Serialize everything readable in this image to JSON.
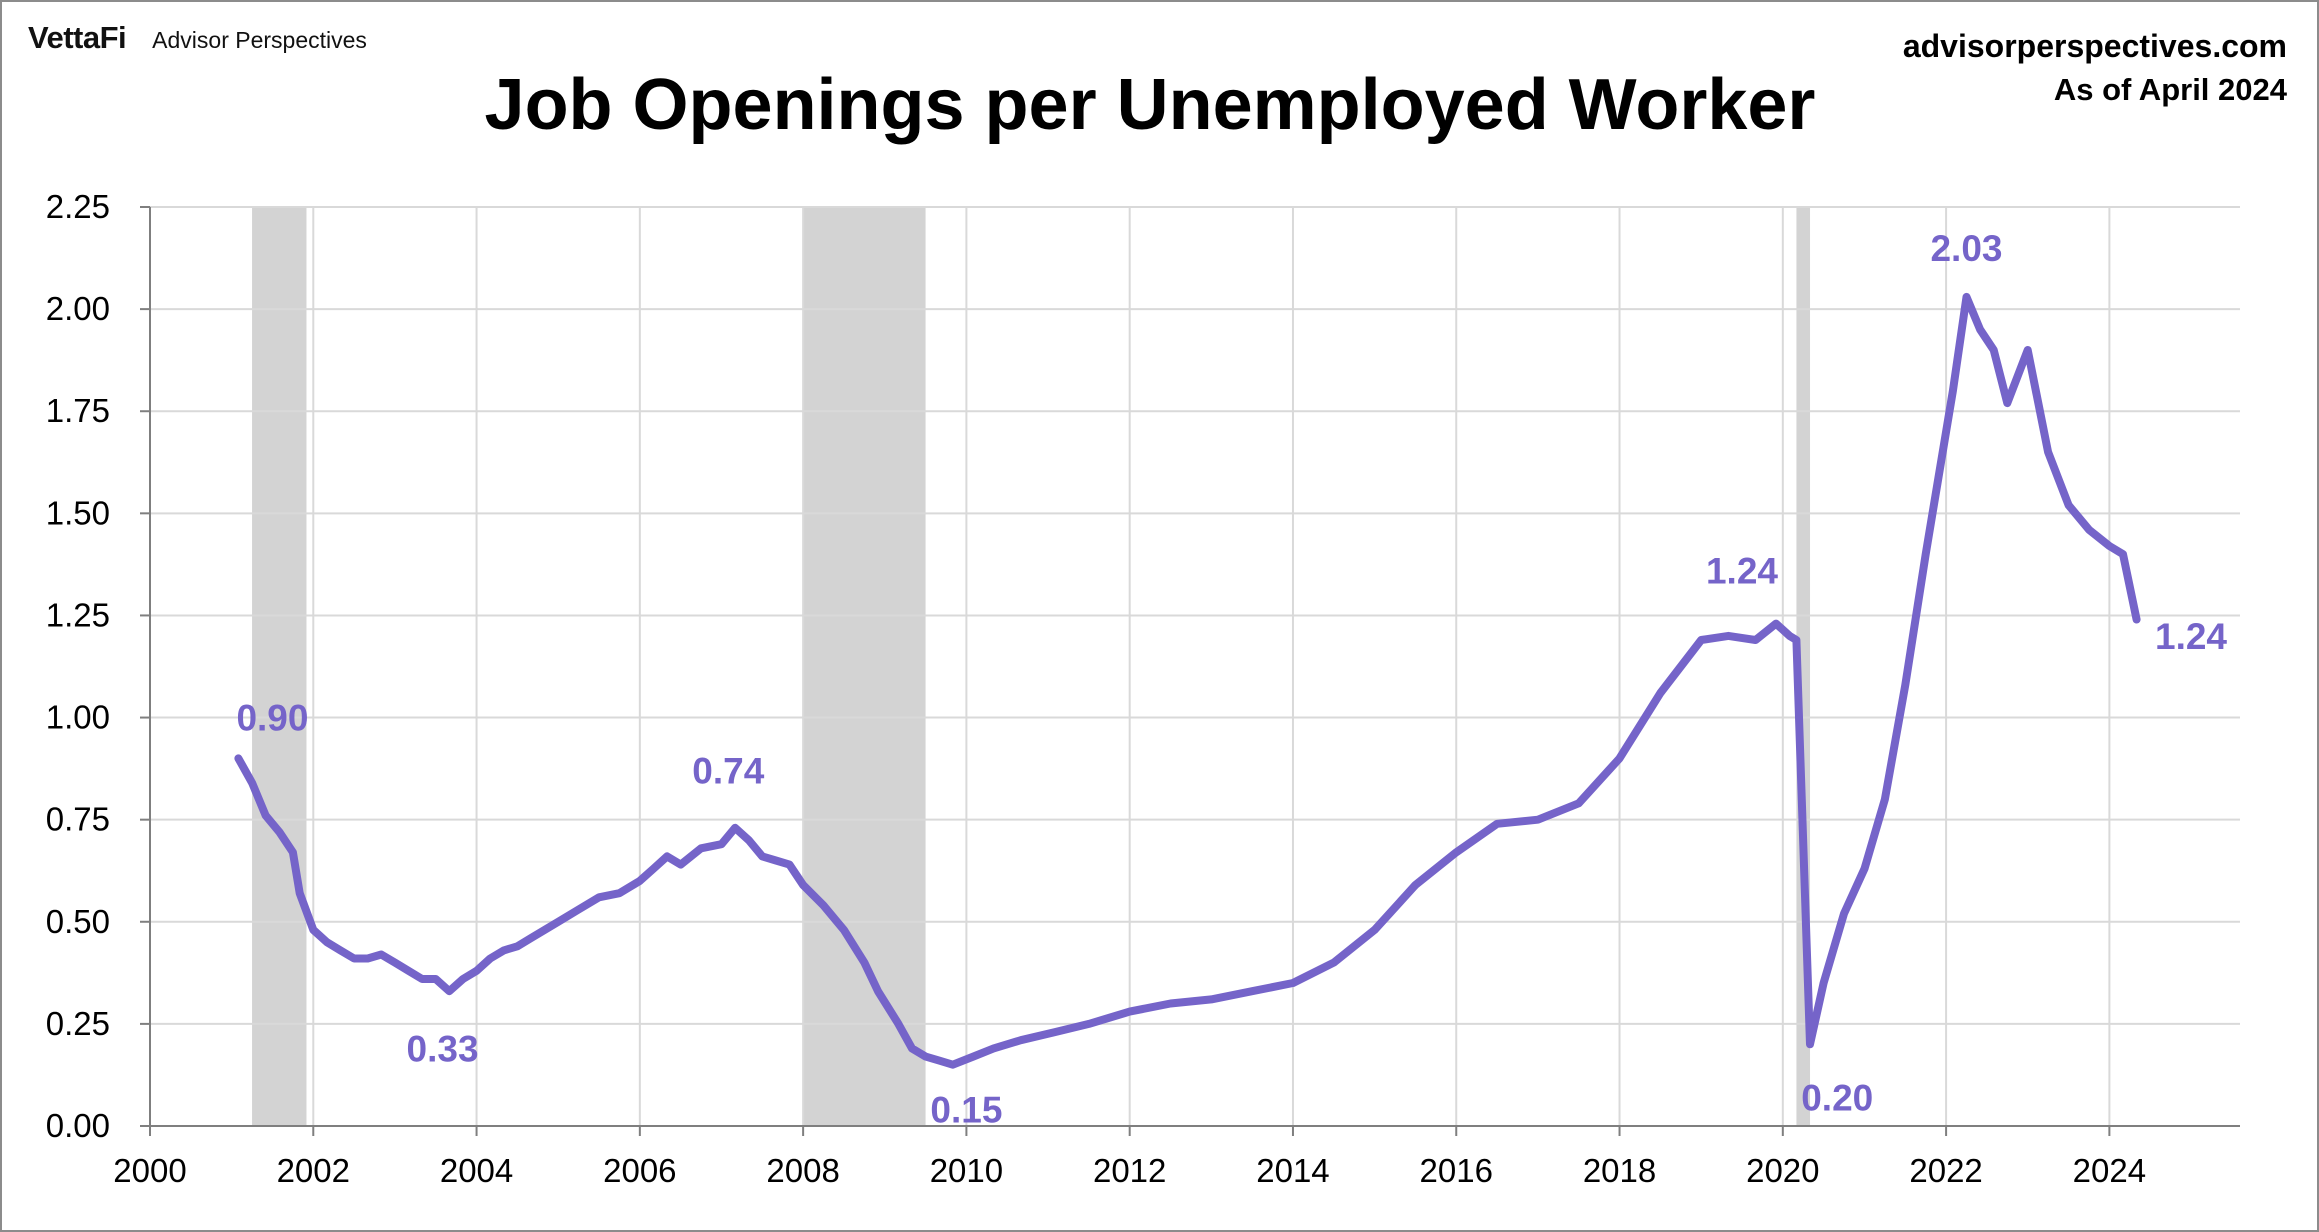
{
  "brand": {
    "logo": "VettaFi",
    "subtitle": "Advisor Perspectives"
  },
  "source": {
    "url": "advisorperspectives.com",
    "as_of": "As of April 2024"
  },
  "colors": {
    "line": "#7564C9",
    "recession": "#d3d3d3",
    "grid": "#d9d9d9",
    "axis": "#7f7f7f"
  },
  "chart_data": {
    "type": "line",
    "title": "Job Openings per Unemployed Worker",
    "xlabel": "",
    "ylabel": "",
    "xlim": [
      2000,
      2025.6
    ],
    "ylim": [
      0,
      2.25
    ],
    "grid": true,
    "x_ticks": [
      "2000",
      "2002",
      "2004",
      "2006",
      "2008",
      "2010",
      "2012",
      "2014",
      "2016",
      "2018",
      "2020",
      "2022",
      "2024"
    ],
    "y_ticks": [
      "0.00",
      "0.25",
      "0.50",
      "0.75",
      "1.00",
      "1.25",
      "1.50",
      "1.75",
      "2.00",
      "2.25"
    ],
    "recessions": [
      {
        "start": "2001-03",
        "end": "2001-11"
      },
      {
        "start": "2007-12",
        "end": "2009-06"
      },
      {
        "start": "2020-02",
        "end": "2020-04"
      }
    ],
    "series": [
      {
        "values": [
          [
            "2001-01",
            0.9
          ],
          [
            "2001-03",
            0.84
          ],
          [
            "2001-05",
            0.76
          ],
          [
            "2001-07",
            0.72
          ],
          [
            "2001-09",
            0.67
          ],
          [
            "2001-10",
            0.57
          ],
          [
            "2001-12",
            0.48
          ],
          [
            "2002-02",
            0.45
          ],
          [
            "2002-04",
            0.43
          ],
          [
            "2002-06",
            0.41
          ],
          [
            "2002-08",
            0.41
          ],
          [
            "2002-10",
            0.42
          ],
          [
            "2002-12",
            0.4
          ],
          [
            "2003-02",
            0.38
          ],
          [
            "2003-04",
            0.36
          ],
          [
            "2003-06",
            0.36
          ],
          [
            "2003-08",
            0.33
          ],
          [
            "2003-10",
            0.36
          ],
          [
            "2003-12",
            0.38
          ],
          [
            "2004-02",
            0.41
          ],
          [
            "2004-04",
            0.43
          ],
          [
            "2004-06",
            0.44
          ],
          [
            "2004-08",
            0.46
          ],
          [
            "2004-10",
            0.48
          ],
          [
            "2004-12",
            0.5
          ],
          [
            "2005-03",
            0.53
          ],
          [
            "2005-06",
            0.56
          ],
          [
            "2005-09",
            0.57
          ],
          [
            "2005-12",
            0.6
          ],
          [
            "2006-02",
            0.63
          ],
          [
            "2006-04",
            0.66
          ],
          [
            "2006-06",
            0.64
          ],
          [
            "2006-09",
            0.68
          ],
          [
            "2006-12",
            0.69
          ],
          [
            "2007-02",
            0.73
          ],
          [
            "2007-04",
            0.7
          ],
          [
            "2007-06",
            0.66
          ],
          [
            "2007-08",
            0.65
          ],
          [
            "2007-10",
            0.64
          ],
          [
            "2007-12",
            0.59
          ],
          [
            "2008-03",
            0.54
          ],
          [
            "2008-06",
            0.48
          ],
          [
            "2008-09",
            0.4
          ],
          [
            "2008-11",
            0.33
          ],
          [
            "2009-02",
            0.25
          ],
          [
            "2009-04",
            0.19
          ],
          [
            "2009-06",
            0.17
          ],
          [
            "2009-08",
            0.16
          ],
          [
            "2009-10",
            0.15
          ],
          [
            "2010-01",
            0.17
          ],
          [
            "2010-04",
            0.19
          ],
          [
            "2010-08",
            0.21
          ],
          [
            "2011-01",
            0.23
          ],
          [
            "2011-06",
            0.25
          ],
          [
            "2011-12",
            0.28
          ],
          [
            "2012-06",
            0.3
          ],
          [
            "2012-12",
            0.31
          ],
          [
            "2013-06",
            0.33
          ],
          [
            "2013-12",
            0.35
          ],
          [
            "2014-06",
            0.4
          ],
          [
            "2014-12",
            0.48
          ],
          [
            "2015-06",
            0.59
          ],
          [
            "2015-12",
            0.67
          ],
          [
            "2016-06",
            0.74
          ],
          [
            "2016-12",
            0.75
          ],
          [
            "2017-06",
            0.79
          ],
          [
            "2017-12",
            0.9
          ],
          [
            "2018-06",
            1.06
          ],
          [
            "2018-12",
            1.19
          ],
          [
            "2019-04",
            1.2
          ],
          [
            "2019-08",
            1.19
          ],
          [
            "2019-11",
            1.23
          ],
          [
            "2020-01",
            1.2
          ],
          [
            "2020-02",
            1.19
          ],
          [
            "2020-04",
            0.2
          ],
          [
            "2020-06",
            0.35
          ],
          [
            "2020-09",
            0.52
          ],
          [
            "2020-12",
            0.63
          ],
          [
            "2021-03",
            0.8
          ],
          [
            "2021-06",
            1.08
          ],
          [
            "2021-09",
            1.4
          ],
          [
            "2021-12",
            1.7
          ],
          [
            "2022-01",
            1.8
          ],
          [
            "2022-03",
            2.03
          ],
          [
            "2022-05",
            1.95
          ],
          [
            "2022-07",
            1.9
          ],
          [
            "2022-09",
            1.77
          ],
          [
            "2022-12",
            1.9
          ],
          [
            "2023-03",
            1.65
          ],
          [
            "2023-06",
            1.52
          ],
          [
            "2023-09",
            1.46
          ],
          [
            "2023-12",
            1.42
          ],
          [
            "2024-02",
            1.4
          ],
          [
            "2024-04",
            1.24
          ]
        ]
      }
    ],
    "annotations": [
      {
        "text": "0.90",
        "x": "2001-06",
        "y": 1.0
      },
      {
        "text": "0.33",
        "x": "2003-07",
        "y": 0.19
      },
      {
        "text": "0.74",
        "x": "2007-01",
        "y": 0.87
      },
      {
        "text": "0.15",
        "x": "2009-12",
        "y": 0.04
      },
      {
        "text": "1.24",
        "x": "2019-06",
        "y": 1.36
      },
      {
        "text": "0.20",
        "x": "2020-08",
        "y": 0.07
      },
      {
        "text": "2.03",
        "x": "2022-03",
        "y": 2.15
      },
      {
        "text": "1.24",
        "x": "2025-00",
        "y": 1.2
      }
    ]
  }
}
